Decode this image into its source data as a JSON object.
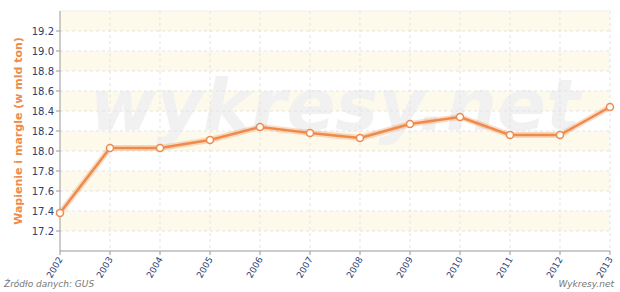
{
  "chart_data": {
    "type": "line",
    "y_label": "Wapienie i margle (w mld ton)",
    "source": "Źródło danych: GUS",
    "credit": "Wykresy.net",
    "watermark": "wykresy.net",
    "categories": [
      "2002",
      "2003",
      "2004",
      "2005",
      "2006",
      "2007",
      "2008",
      "2009",
      "2010",
      "2011",
      "2012",
      "2013"
    ],
    "values": [
      17.38,
      18.03,
      18.03,
      18.11,
      18.24,
      18.18,
      18.13,
      18.27,
      18.34,
      18.16,
      18.16,
      18.44
    ],
    "color": "#f08a4b",
    "marker": "circle",
    "ylim": [
      17.0,
      19.4
    ],
    "yticks": [
      17.2,
      17.4,
      17.6,
      17.8,
      {
        "value": 18.0,
        "label": "18.0"
      },
      18.2,
      18.4,
      18.6,
      18.8,
      {
        "value": 19.0,
        "label": "19.0"
      },
      19.2
    ],
    "grid": true
  }
}
